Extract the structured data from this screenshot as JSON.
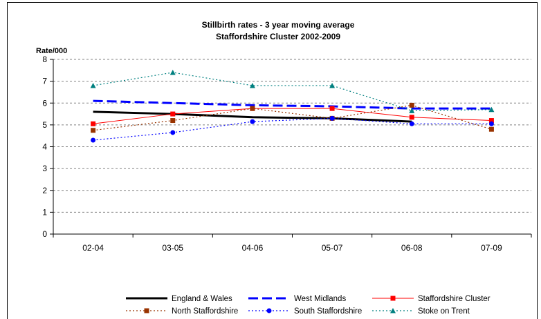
{
  "chart_data": {
    "type": "line",
    "title_line1": "Stillbirth rates - 3 year moving average",
    "title_line2": "Staffordshire Cluster 2002-2009",
    "xlabel": "",
    "ylabel": "Rate/000",
    "categories": [
      "02-04",
      "03-05",
      "04-06",
      "05-07",
      "06-08",
      "07-09"
    ],
    "ylim": [
      0,
      8
    ],
    "yticks": [
      "0",
      "1",
      "2",
      "3",
      "4",
      "5",
      "6",
      "7",
      "8"
    ],
    "grid": "horizontal dashed",
    "legend_position": "bottom",
    "series": [
      {
        "name": "England & Wales",
        "values": [
          5.6,
          5.5,
          5.35,
          5.3,
          5.15,
          null
        ],
        "color": "#000000",
        "style": "solid-thick",
        "marker": "none"
      },
      {
        "name": "West Midlands",
        "values": [
          6.1,
          6.0,
          5.9,
          5.85,
          5.75,
          5.75
        ],
        "color": "#0000ff",
        "style": "dashed-thick",
        "marker": "none"
      },
      {
        "name": "Staffordshire Cluster",
        "values": [
          5.05,
          5.5,
          5.75,
          5.75,
          5.35,
          5.2
        ],
        "color": "#ff0000",
        "style": "solid-thin",
        "marker": "square"
      },
      {
        "name": "North Staffordshire",
        "values": [
          4.75,
          5.2,
          5.75,
          5.3,
          5.9,
          4.8
        ],
        "color": "#993300",
        "style": "dotted",
        "marker": "square"
      },
      {
        "name": "South Staffordshire",
        "values": [
          4.3,
          4.65,
          5.15,
          5.3,
          5.05,
          5.05
        ],
        "color": "#0000ff",
        "style": "dotted",
        "marker": "circle"
      },
      {
        "name": "Stoke on Trent",
        "values": [
          6.8,
          7.4,
          6.8,
          6.8,
          5.65,
          5.7
        ],
        "color": "#008080",
        "style": "dotted",
        "marker": "triangle"
      }
    ]
  }
}
